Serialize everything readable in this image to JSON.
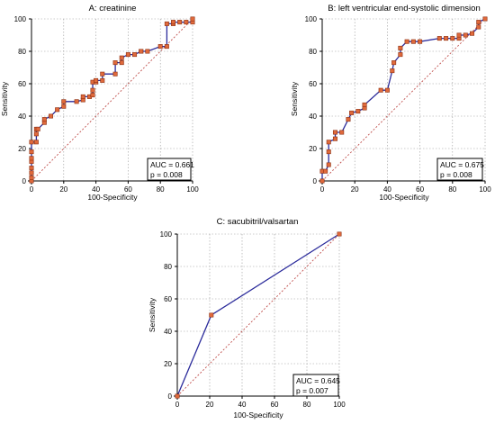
{
  "chart_data": [
    {
      "type": "line",
      "title": "A: creatinine",
      "xlabel": "100-Specificity",
      "ylabel": "Sensitivity",
      "xlim": [
        0,
        100
      ],
      "ylim": [
        0,
        100
      ],
      "ticks": [
        0,
        20,
        40,
        60,
        80,
        100
      ],
      "tick_labels": [
        "0",
        "20",
        "40",
        "60",
        "80",
        "100"
      ],
      "grid": true,
      "markers": true,
      "reference_line": {
        "x": [
          0,
          100
        ],
        "y": [
          0,
          100
        ]
      },
      "series": [
        {
          "x": [
            0,
            0,
            0,
            0,
            0,
            0,
            0,
            0,
            3,
            3,
            3,
            4,
            8,
            8,
            12,
            16,
            20,
            20,
            28,
            32,
            32,
            36,
            38,
            38,
            38,
            40,
            40,
            44,
            44,
            52,
            52,
            56,
            56,
            60,
            64,
            68,
            68,
            72,
            80,
            84,
            84,
            88,
            88,
            92,
            96,
            100,
            100
          ],
          "y": [
            0,
            2,
            5,
            8,
            12,
            14,
            18,
            24,
            24,
            29,
            32,
            32,
            36,
            38,
            40,
            44,
            46,
            49,
            49,
            50,
            52,
            52,
            53,
            56,
            61,
            61,
            62,
            62,
            66,
            66,
            73,
            73,
            76,
            78,
            78,
            80,
            80,
            80,
            83,
            83,
            97,
            97,
            98,
            98,
            98,
            98,
            100
          ]
        }
      ],
      "annotation": [
        "AUC = 0.661",
        "p = 0.008"
      ],
      "annotation_position": "bottom-right"
    },
    {
      "type": "line",
      "title": "B: left ventricular end-systolic dimension",
      "xlabel": "100-Specificity",
      "ylabel": "Sensitivity",
      "xlim": [
        0,
        100
      ],
      "ylim": [
        0,
        100
      ],
      "ticks": [
        0,
        20,
        40,
        60,
        80,
        100
      ],
      "tick_labels": [
        "0",
        "20",
        "40",
        "60",
        "80",
        "100"
      ],
      "grid": true,
      "markers": true,
      "reference_line": {
        "x": [
          0,
          100
        ],
        "y": [
          0,
          100
        ]
      },
      "series": [
        {
          "x": [
            0,
            0,
            2,
            4,
            4,
            4,
            8,
            8,
            12,
            16,
            18,
            22,
            26,
            26,
            36,
            40,
            43,
            44,
            48,
            48,
            52,
            56,
            60,
            72,
            76,
            80,
            84,
            84,
            88,
            92,
            96,
            96,
            100
          ],
          "y": [
            0,
            6,
            6,
            10,
            18,
            24,
            26,
            30,
            30,
            38,
            42,
            43,
            45,
            47,
            56,
            56,
            68,
            73,
            78,
            82,
            86,
            86,
            86,
            88,
            88,
            88,
            88,
            90,
            90,
            91,
            95,
            98,
            100
          ]
        }
      ],
      "annotation": [
        "AUC = 0.675",
        "p = 0.008"
      ],
      "annotation_position": "bottom-right"
    },
    {
      "type": "line",
      "title": "C: sacubitril/valsartan",
      "xlabel": "100-Specificity",
      "ylabel": "Sensitivity",
      "xlim": [
        0,
        100
      ],
      "ylim": [
        0,
        100
      ],
      "ticks": [
        0,
        20,
        40,
        60,
        80,
        100
      ],
      "tick_labels": [
        "0",
        "20",
        "40",
        "60",
        "80",
        "100"
      ],
      "grid": true,
      "markers": true,
      "reference_line": {
        "x": [
          0,
          100
        ],
        "y": [
          0,
          100
        ]
      },
      "series": [
        {
          "x": [
            0,
            21,
            100
          ],
          "y": [
            0,
            50,
            100
          ]
        }
      ],
      "annotation": [
        "AUC = 0.645",
        "p = 0.007"
      ],
      "annotation_position": "bottom-right"
    }
  ],
  "colors": {
    "roc_line": "#2b2b9b",
    "marker_fill": "#e06a3c",
    "marker_stroke": "#8c2f12",
    "reference_line": "#c0504d",
    "grid": "#9a9a9a"
  }
}
